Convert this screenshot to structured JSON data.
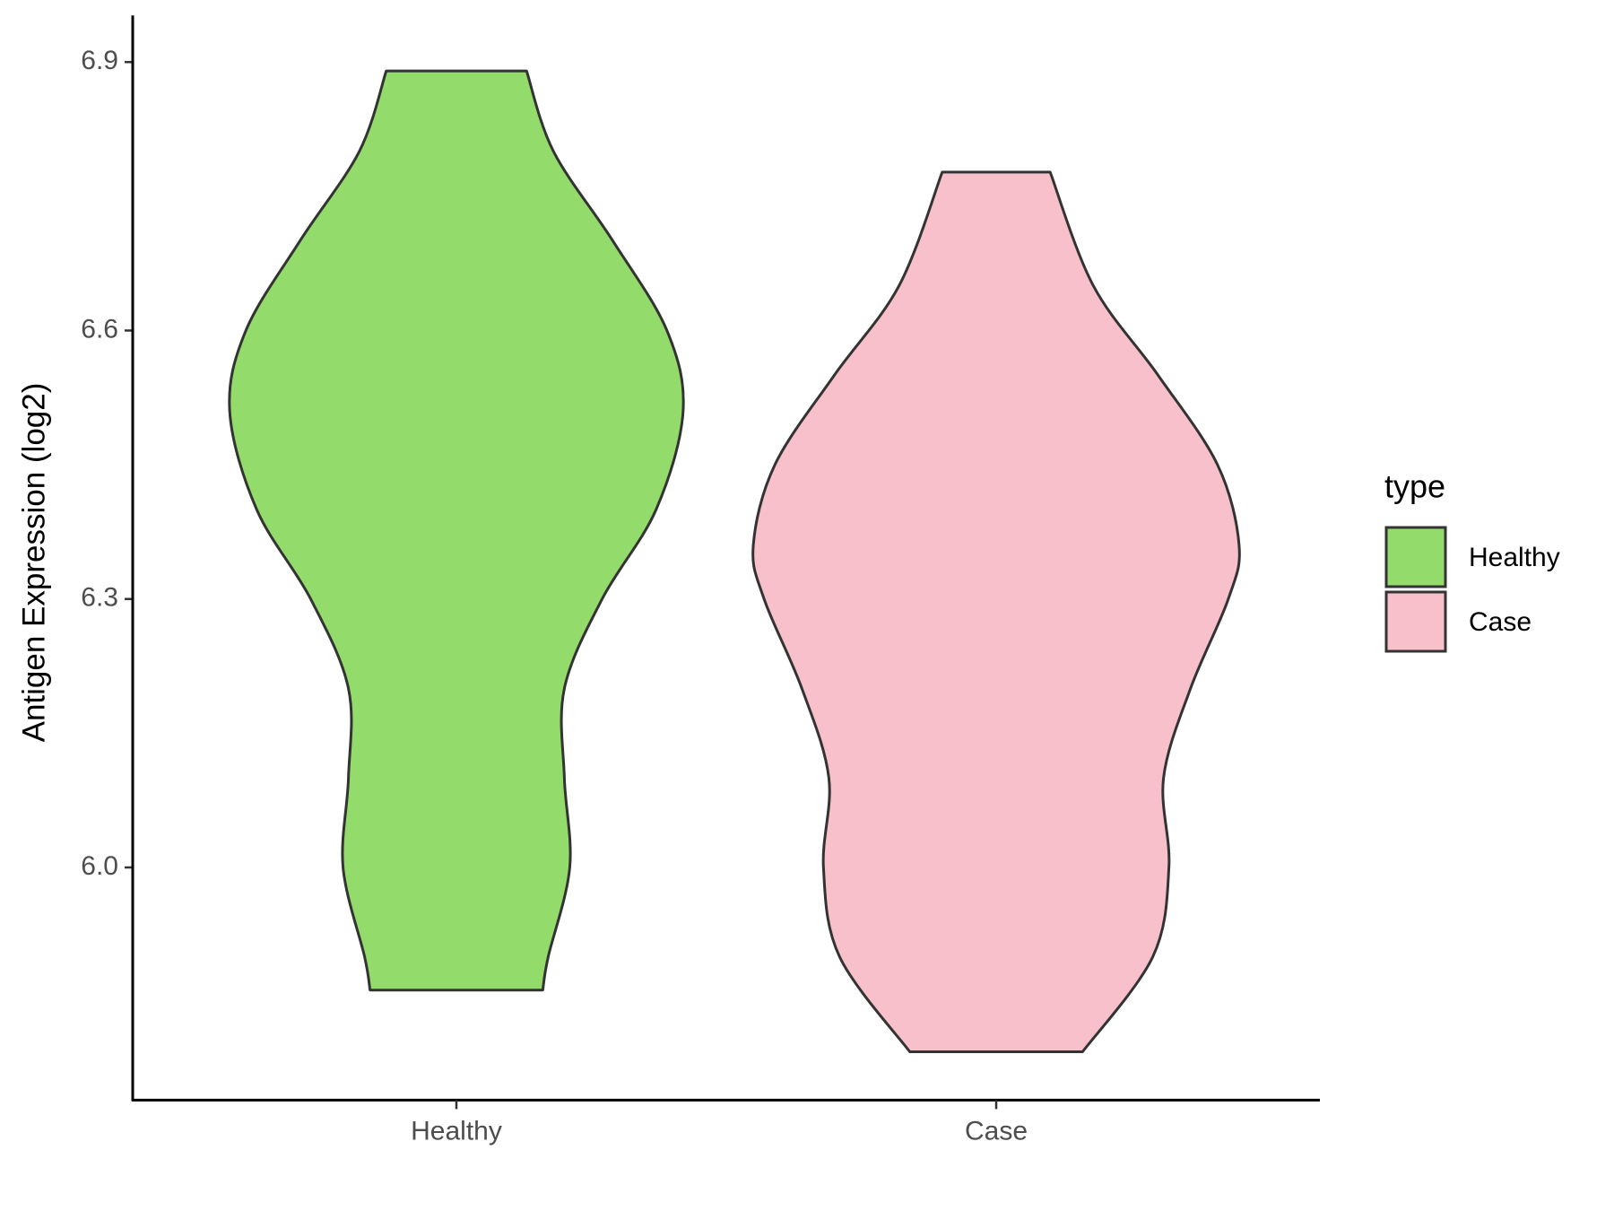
{
  "chart_data": {
    "type": "violin",
    "y_label": "Antigen Expression (log2)",
    "categories": [
      "Healthy",
      "Case"
    ],
    "ylim": [
      5.74,
      6.95
    ],
    "yticks": [
      {
        "value": 6,
        "label": "6.0"
      },
      6.3,
      6.6,
      6.9
    ],
    "legend_title": "type",
    "legend_position": "right",
    "series": [
      {
        "name": "Healthy",
        "color": "#93dc6b",
        "y": [
          5.863,
          5.9,
          6.0,
          6.1,
          6.2,
          6.3,
          6.4,
          6.51,
          6.6,
          6.7,
          6.8,
          6.89
        ],
        "half_width": [
          0.16,
          0.17,
          0.21,
          0.2,
          0.2,
          0.27,
          0.37,
          0.42,
          0.39,
          0.29,
          0.18,
          0.13
        ]
      },
      {
        "name": "Case",
        "color": "#f7c0cb",
        "y": [
          5.794,
          5.9,
          6.0,
          6.1,
          6.2,
          6.3,
          6.36,
          6.45,
          6.55,
          6.65,
          6.777
        ],
        "half_width": [
          0.16,
          0.29,
          0.32,
          0.31,
          0.36,
          0.43,
          0.45,
          0.41,
          0.3,
          0.18,
          0.1
        ]
      }
    ]
  }
}
